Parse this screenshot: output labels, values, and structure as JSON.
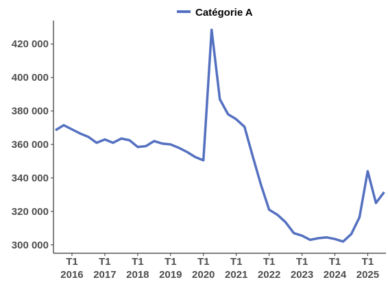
{
  "chart_data": {
    "type": "line",
    "title": "",
    "xlabel": "",
    "ylabel": "",
    "legend_position": "top",
    "grid": false,
    "ylim": [
      295000,
      434000
    ],
    "y_ticks": [
      {
        "value": 300000,
        "label": "300 000"
      },
      {
        "value": 320000,
        "label": "320 000"
      },
      {
        "value": 340000,
        "label": "340 000"
      },
      {
        "value": 360000,
        "label": "360 000"
      },
      {
        "value": 380000,
        "label": "380 000"
      },
      {
        "value": 400000,
        "label": "400 000"
      },
      {
        "value": 420000,
        "label": "420 000"
      }
    ],
    "x_ticks": [
      {
        "label": "T1",
        "year": "2016"
      },
      {
        "label": "T1",
        "year": "2017"
      },
      {
        "label": "T1",
        "year": "2018"
      },
      {
        "label": "T1",
        "year": "2019"
      },
      {
        "label": "T1",
        "year": "2020"
      },
      {
        "label": "T1",
        "year": "2021"
      },
      {
        "label": "T1",
        "year": "2022"
      },
      {
        "label": "T1",
        "year": "2023"
      },
      {
        "label": "T1",
        "year": "2024"
      },
      {
        "label": "T1",
        "year": "2025"
      }
    ],
    "x": [
      "2015-T3",
      "2015-T4",
      "2016-T1",
      "2016-T2",
      "2016-T3",
      "2016-T4",
      "2017-T1",
      "2017-T2",
      "2017-T3",
      "2017-T4",
      "2018-T1",
      "2018-T2",
      "2018-T3",
      "2018-T4",
      "2019-T1",
      "2019-T2",
      "2019-T3",
      "2019-T4",
      "2020-T1",
      "2020-T2",
      "2020-T3",
      "2020-T4",
      "2021-T1",
      "2021-T2",
      "2021-T3",
      "2021-T4",
      "2022-T1",
      "2022-T2",
      "2022-T3",
      "2022-T4",
      "2023-T1",
      "2023-T2",
      "2023-T3",
      "2023-T4",
      "2024-T1",
      "2024-T2",
      "2024-T3",
      "2024-T4",
      "2025-T1",
      "2025-T2",
      "2025-T3"
    ],
    "series": [
      {
        "name": "Catégorie A",
        "color": "#5470c0",
        "values": [
          368500,
          371500,
          369000,
          366500,
          364500,
          361000,
          363000,
          361000,
          363500,
          362500,
          358500,
          359000,
          362000,
          360500,
          360000,
          358000,
          355500,
          352500,
          350500,
          428500,
          387000,
          378000,
          375000,
          370500,
          353000,
          336000,
          321000,
          318000,
          313500,
          307000,
          305500,
          303000,
          304000,
          304500,
          303500,
          302000,
          306500,
          316500,
          344000,
          325000,
          331500
        ]
      }
    ]
  }
}
